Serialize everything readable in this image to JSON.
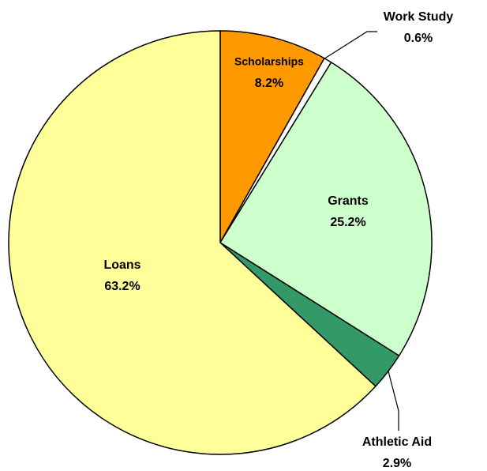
{
  "chart_data": {
    "type": "pie",
    "categories": [
      "Scholarships",
      "Work Study",
      "Grants",
      "Athletic Aid",
      "Loans"
    ],
    "values": [
      8.2,
      0.6,
      25.2,
      2.9,
      63.2
    ],
    "value_labels": [
      "8.2%",
      "0.6%",
      "25.2%",
      "2.9%",
      "63.2%"
    ],
    "colors": [
      "#FF9900",
      "#FFFFFF",
      "#CCFFCC",
      "#339966",
      "#FFFF99"
    ]
  }
}
